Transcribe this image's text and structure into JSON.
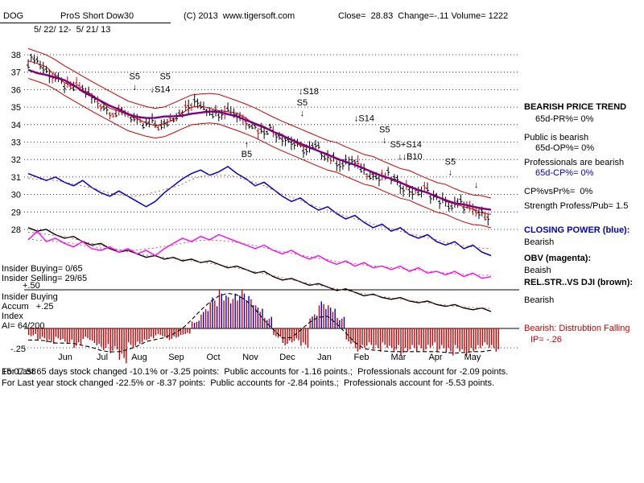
{
  "header": {
    "symbol": "DOG",
    "security_name": "ProS Short Dow30",
    "copyright": "(C) 2013  www.tigersoft.com",
    "quote": "Close=  28.83  Change=-.11 Volume= 1222",
    "date_range": "5/ 22/ 12-  5/ 21/ 13"
  },
  "left_panel": {
    "insider_buying": "Insider Buying= 0/65",
    "insider_selling": "Insider Selling= 29/65",
    "plus_level": "+.50",
    "accum_title1": "Insider Buying",
    "accum_title2": "Accum   +.25",
    "accum_title3": "Index",
    "ai_value": "AI= 64/200",
    "minus_level": "-.25"
  },
  "right_panel": {
    "lines": [
      {
        "text": "BEARISH PRICE TREND"
      },
      {
        "text": "65d-PR%= 0%"
      },
      {
        "text": "Public is bearish"
      },
      {
        "text": "65d-OP%= 0%"
      },
      {
        "text": "Professionals are bearish"
      },
      {
        "text": "65d-CP%= 0%"
      },
      {
        "text": "CP%vsPr%=  0%"
      },
      {
        "text": "Strength Profess/Pub= 1.5"
      },
      {
        "text": "CLOSING POWER (blue):"
      },
      {
        "text": "Bearish"
      },
      {
        "text": "OBV (magenta):"
      },
      {
        "text": "Beaish"
      },
      {
        "text": "REL.STR..VS DJI (brown):"
      },
      {
        "text": "Bearish"
      },
      {
        "text": "Bearish: Distrubtion Falling"
      },
      {
        "text": "IP= -.26"
      }
    ]
  },
  "footer": {
    "time": "15:07:58",
    "line1": "For Last 65 days stock changed -10.1% or -3.25 points:  Public accounts for -1.16 points.;  Professionals account for -2.09 points.",
    "line2": "For Last year stock changed -22.5% or -8.37 points:  Public accounts for -2.84 points.;  Professionals account for -5.53 points."
  },
  "chart_data": {
    "type": "composite",
    "title": "DOG ProS Short Dow30",
    "date_range": "5/22/12 - 5/21/13",
    "close": 28.83,
    "change": -0.11,
    "volume": 1222,
    "y_axis": {
      "label": "Price",
      "min": 28,
      "max": 38,
      "ticks": [
        38,
        37,
        36,
        35,
        34,
        33,
        32,
        31,
        30,
        29,
        28
      ],
      "grid": "dotted"
    },
    "x_axis": {
      "label": "Month",
      "months": [
        "Jun",
        "Jul",
        "Aug",
        "Sep",
        "Oct",
        "Nov",
        "Dec",
        "Jan",
        "Feb",
        "Mar",
        "Apr",
        "May"
      ]
    },
    "series": [
      {
        "name": "price",
        "type": "candlestick",
        "color": "#000000",
        "alt_color": "#cc0000",
        "values": [
          37.4,
          37.9,
          37.2,
          36.8,
          36.4,
          36.0,
          36.2,
          35.7,
          35.3,
          34.9,
          34.6,
          34.8,
          34.3,
          33.9,
          34.1,
          33.8,
          34.3,
          34.7,
          35.0,
          35.3,
          34.9,
          34.6,
          34.9,
          34.7,
          34.4,
          34.0,
          33.6,
          33.8,
          33.4,
          33.1,
          32.8,
          32.5,
          32.7,
          32.3,
          32.0,
          31.7,
          31.9,
          31.5,
          31.2,
          30.9,
          31.1,
          30.7,
          30.4,
          30.1,
          30.3,
          29.9,
          29.6,
          29.3,
          29.5,
          29.1,
          28.9,
          28.83
        ]
      },
      {
        "name": "closing_power",
        "type": "line",
        "color": "#0000cc",
        "values": [
          31.2,
          31.0,
          30.8,
          31.0,
          30.7,
          30.5,
          30.8,
          30.4,
          30.1,
          29.9,
          30.2,
          29.9,
          29.6,
          29.3,
          29.6,
          30.1,
          30.5,
          30.9,
          31.2,
          31.4,
          31.1,
          31.3,
          31.6,
          31.2,
          30.9,
          30.5,
          30.7,
          30.3,
          29.9,
          29.6,
          29.8,
          29.4,
          29.1,
          29.3,
          28.9,
          28.6,
          28.8,
          28.4,
          28.1,
          28.3,
          27.9,
          28.1,
          27.7,
          27.5,
          27.7,
          27.3,
          27.1,
          27.3,
          26.9,
          27.1,
          26.7,
          26.5
        ]
      },
      {
        "name": "obv",
        "type": "line",
        "color": "#ff00ff",
        "values": [
          27.4,
          27.9,
          27.3,
          27.5,
          27.2,
          27.0,
          27.3,
          26.9,
          26.8,
          27.0,
          26.7,
          26.9,
          26.6,
          26.8,
          26.5,
          26.9,
          27.2,
          27.5,
          27.3,
          27.6,
          27.4,
          27.7,
          27.5,
          27.3,
          27.1,
          26.9,
          27.1,
          26.8,
          26.6,
          26.8,
          26.5,
          26.3,
          26.5,
          26.2,
          26.0,
          26.2,
          25.9,
          26.1,
          25.8,
          25.9,
          25.7,
          25.9,
          25.6,
          25.8,
          25.5,
          25.6,
          25.4,
          25.6,
          25.3,
          25.5,
          25.2,
          25.3
        ]
      },
      {
        "name": "relative_strength",
        "type": "line",
        "color": "#000000",
        "values": [
          28.1,
          27.9,
          28.0,
          27.7,
          27.5,
          27.6,
          27.3,
          27.1,
          27.2,
          26.9,
          26.7,
          26.8,
          26.6,
          26.4,
          26.5,
          26.3,
          26.4,
          26.2,
          26.3,
          26.1,
          26.2,
          26.0,
          25.8,
          25.9,
          25.7,
          25.5,
          25.6,
          25.3,
          25.1,
          25.2,
          25.0,
          24.8,
          24.9,
          24.7,
          24.5,
          24.6,
          24.4,
          24.2,
          24.3,
          24.1,
          24.0,
          24.1,
          23.9,
          23.8,
          23.9,
          23.7,
          23.6,
          23.7,
          23.5,
          23.4,
          23.5,
          23.3
        ]
      },
      {
        "name": "accumulation_index",
        "type": "histogram",
        "pos_color": "#0000cc",
        "neg_color": "#cc0000",
        "scale": {
          "zero_ref": 0,
          "plus_ref": 0.5,
          "minus_ref": -0.25
        },
        "values": [
          -0.1,
          -0.15,
          -0.2,
          -0.15,
          -0.2,
          -0.25,
          -0.15,
          -0.22,
          -0.28,
          -0.32,
          -0.45,
          -0.25,
          -0.2,
          -0.15,
          -0.1,
          -0.15,
          -0.12,
          -0.08,
          0.1,
          0.25,
          0.4,
          0.5,
          0.45,
          0.5,
          0.42,
          0.3,
          0.15,
          -0.12,
          -0.22,
          -0.18,
          -0.25,
          0.18,
          0.35,
          0.3,
          0.15,
          -0.2,
          -0.3,
          -0.25,
          -0.3,
          -0.25,
          -0.3,
          -0.35,
          -0.3,
          -0.3,
          -0.25,
          -0.3,
          -0.35,
          -0.3,
          -0.35,
          -0.3,
          -0.25,
          -0.3
        ]
      }
    ],
    "overlays": [
      {
        "name": "price_ma_fast",
        "type": "sma",
        "window": 3,
        "of": "price",
        "color": "#cc0000",
        "width": 1
      },
      {
        "name": "price_band_upper",
        "type": "sma_offset",
        "window": 5,
        "offset": 0.85,
        "of": "price",
        "color": "#cc0000",
        "width": 1
      },
      {
        "name": "price_band_lower",
        "type": "sma_offset",
        "window": 5,
        "offset": -0.85,
        "of": "price",
        "color": "#cc0000",
        "width": 1
      },
      {
        "name": "price_ma_slow",
        "type": "sma",
        "window": 9,
        "of": "price",
        "color": "#800080",
        "width": 2.4
      },
      {
        "name": "accum_signal",
        "type": "sma",
        "window": 5,
        "of": "accumulation_index",
        "color": "#000000",
        "dash": "5,3"
      }
    ],
    "annotations": [
      {
        "fx": 0.23,
        "price": 36.6,
        "label": "S5",
        "color": "#000000",
        "arrow": "below"
      },
      {
        "fx": 0.296,
        "price": 36.6,
        "label": "S5",
        "color": "#000000",
        "arrow": "none"
      },
      {
        "fx": 0.285,
        "price": 35.85,
        "label": "↓S14",
        "color": "#000000",
        "arrow": "none"
      },
      {
        "fx": 0.606,
        "price": 35.75,
        "label": "↓S18",
        "color": "#000000",
        "arrow": "none"
      },
      {
        "fx": 0.592,
        "price": 35.1,
        "label": "S5",
        "color": "#000000",
        "arrow": "below"
      },
      {
        "fx": 0.726,
        "price": 34.2,
        "label": "↓S14",
        "color": "#000000",
        "arrow": "none"
      },
      {
        "fx": 0.77,
        "price": 33.55,
        "label": "S5",
        "color": "#000000",
        "arrow": "below"
      },
      {
        "fx": 0.816,
        "price": 32.7,
        "label": "S5+S14",
        "color": "#000000",
        "arrow": "none"
      },
      {
        "fx": 0.825,
        "price": 32.0,
        "label": "↓↓B10",
        "color": "#000000",
        "arrow": "none"
      },
      {
        "fx": 0.912,
        "price": 31.7,
        "label": "S5",
        "color": "#000000",
        "arrow": "below"
      },
      {
        "fx": 0.968,
        "price": 30.4,
        "label": "↓",
        "color": "#000000",
        "arrow": "none"
      },
      {
        "fx": 0.472,
        "price": 32.15,
        "label": "B5",
        "color": "#cc0000",
        "arrow": "above"
      }
    ]
  }
}
